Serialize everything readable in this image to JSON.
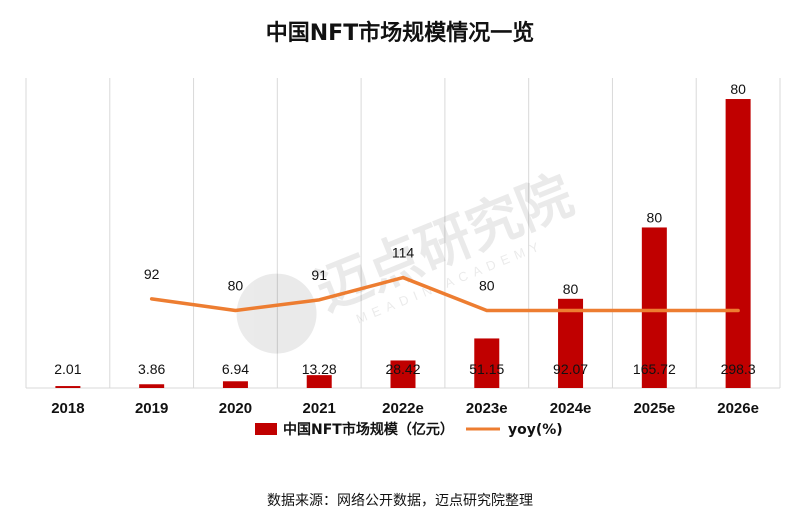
{
  "chart_data": {
    "type": "bar",
    "title": "中国NFT市场规模情况一览",
    "categories": [
      "2018",
      "2019",
      "2020",
      "2021",
      "2022e",
      "2023e",
      "2024e",
      "2025e",
      "2026e"
    ],
    "series": [
      {
        "name": "中国NFT市场规模（亿元）",
        "type": "bar",
        "values": [
          2.01,
          3.86,
          6.94,
          13.28,
          28.42,
          51.15,
          92.07,
          165.72,
          298.3
        ],
        "labels": [
          "2.01",
          "3.86",
          "6.94",
          "13.28",
          "28.42",
          "51.15",
          "92.07",
          "165.72",
          "298.3"
        ]
      },
      {
        "name": "yoy(%)",
        "type": "line",
        "values": [
          null,
          92,
          80,
          91,
          114,
          80,
          80,
          80,
          80
        ],
        "labels": [
          "",
          "92",
          "80",
          "91",
          "114",
          "80",
          "80",
          "80",
          "80"
        ]
      }
    ],
    "ylim_bar": [
      0,
      320
    ],
    "ylim_line": [
      0,
      320
    ],
    "grid": "vertical",
    "legend_position": "bottom",
    "colors": {
      "bar": "#c00000",
      "line": "#ed7d31",
      "grid": "#d9d9d9"
    }
  },
  "watermark": {
    "text": "迈点研究院",
    "subtext": "MEADIN ACADEMY"
  },
  "source_note": "数据来源：网络公开数据，迈点研究院整理"
}
